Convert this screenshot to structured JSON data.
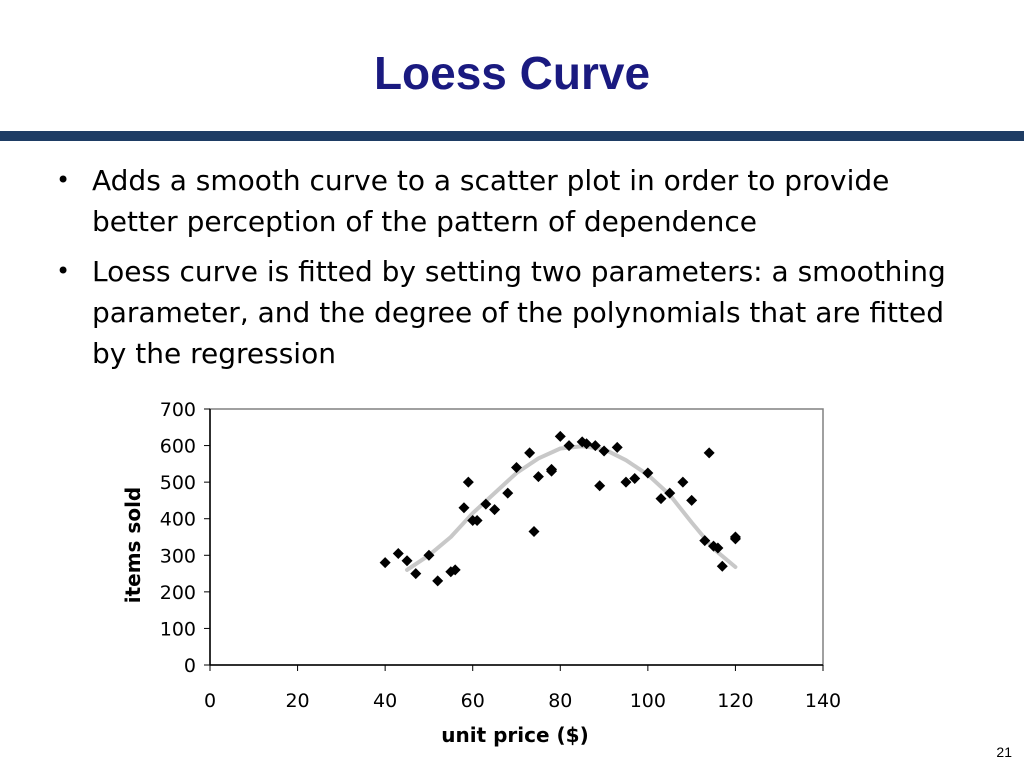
{
  "slide": {
    "title": "Loess Curve",
    "page_number": "21",
    "bullets": [
      "Adds a smooth curve to a scatter plot in order to provide better perception of the pattern of dependence",
      "Loess curve is fitted by setting two parameters: a smoothing parameter, and the degree of the polynomials that are fitted by the regression"
    ],
    "bullet_symbol": "•"
  },
  "colors": {
    "title": "#1a1a80",
    "rule": "#1e3c64",
    "points": "#000000",
    "curve": "#c8c8c8"
  },
  "chart_data": {
    "type": "scatter",
    "xlabel": "unit price ($)",
    "ylabel": "items sold",
    "xlim": [
      0,
      140
    ],
    "ylim": [
      0,
      700
    ],
    "xticks": [
      0,
      20,
      40,
      60,
      80,
      100,
      120,
      140
    ],
    "yticks": [
      0,
      100,
      200,
      300,
      400,
      500,
      600,
      700
    ],
    "grid": false,
    "points": [
      {
        "x": 40,
        "y": 280
      },
      {
        "x": 43,
        "y": 305
      },
      {
        "x": 45,
        "y": 285
      },
      {
        "x": 47,
        "y": 250
      },
      {
        "x": 50,
        "y": 300
      },
      {
        "x": 52,
        "y": 230
      },
      {
        "x": 55,
        "y": 255
      },
      {
        "x": 56,
        "y": 260
      },
      {
        "x": 58,
        "y": 430
      },
      {
        "x": 59,
        "y": 500
      },
      {
        "x": 60,
        "y": 395
      },
      {
        "x": 61,
        "y": 395
      },
      {
        "x": 63,
        "y": 440
      },
      {
        "x": 65,
        "y": 425
      },
      {
        "x": 68,
        "y": 470
      },
      {
        "x": 70,
        "y": 540
      },
      {
        "x": 73,
        "y": 580
      },
      {
        "x": 74,
        "y": 365
      },
      {
        "x": 75,
        "y": 515
      },
      {
        "x": 78,
        "y": 535
      },
      {
        "x": 78,
        "y": 530
      },
      {
        "x": 80,
        "y": 625
      },
      {
        "x": 82,
        "y": 600
      },
      {
        "x": 85,
        "y": 610
      },
      {
        "x": 86,
        "y": 605
      },
      {
        "x": 88,
        "y": 600
      },
      {
        "x": 89,
        "y": 490
      },
      {
        "x": 90,
        "y": 585
      },
      {
        "x": 93,
        "y": 595
      },
      {
        "x": 95,
        "y": 500
      },
      {
        "x": 97,
        "y": 510
      },
      {
        "x": 100,
        "y": 525
      },
      {
        "x": 103,
        "y": 455
      },
      {
        "x": 105,
        "y": 470
      },
      {
        "x": 108,
        "y": 500
      },
      {
        "x": 110,
        "y": 450
      },
      {
        "x": 113,
        "y": 340
      },
      {
        "x": 114,
        "y": 580
      },
      {
        "x": 115,
        "y": 325
      },
      {
        "x": 116,
        "y": 320
      },
      {
        "x": 117,
        "y": 270
      },
      {
        "x": 120,
        "y": 350
      },
      {
        "x": 120,
        "y": 345
      }
    ],
    "curve": [
      {
        "x": 45,
        "y": 260
      },
      {
        "x": 50,
        "y": 300
      },
      {
        "x": 55,
        "y": 350
      },
      {
        "x": 60,
        "y": 415
      },
      {
        "x": 65,
        "y": 470
      },
      {
        "x": 70,
        "y": 525
      },
      {
        "x": 75,
        "y": 565
      },
      {
        "x": 80,
        "y": 592
      },
      {
        "x": 85,
        "y": 598
      },
      {
        "x": 90,
        "y": 590
      },
      {
        "x": 95,
        "y": 560
      },
      {
        "x": 100,
        "y": 520
      },
      {
        "x": 105,
        "y": 465
      },
      {
        "x": 110,
        "y": 390
      },
      {
        "x": 115,
        "y": 318
      },
      {
        "x": 120,
        "y": 268
      }
    ]
  }
}
